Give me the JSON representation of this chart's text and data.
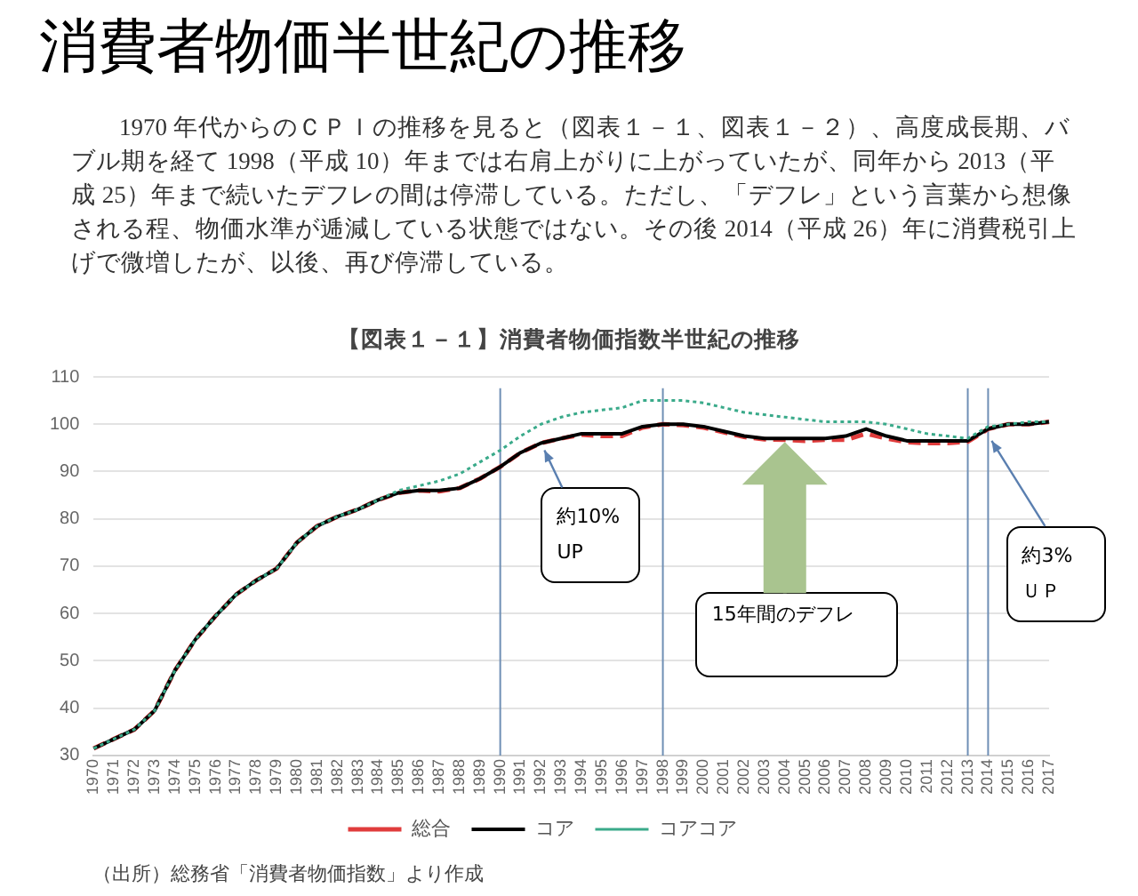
{
  "chart_data": {
    "type": "line",
    "title": "消費者物価半世紀の推移",
    "subtitle": "【図表１－１】消費者物価指数半世紀の推移",
    "categories": [
      "1970",
      "1971",
      "1972",
      "1973",
      "1974",
      "1975",
      "1976",
      "1977",
      "1978",
      "1979",
      "1980",
      "1981",
      "1982",
      "1983",
      "1984",
      "1985",
      "1986",
      "1987",
      "1988",
      "1989",
      "1990",
      "1991",
      "1992",
      "1993",
      "1994",
      "1995",
      "1996",
      "1997",
      "1998",
      "1999",
      "2000",
      "2001",
      "2002",
      "2003",
      "2004",
      "2005",
      "2006",
      "2007",
      "2008",
      "2009",
      "2010",
      "2011",
      "2012",
      "2013",
      "2014",
      "2015",
      "2016",
      "2017"
    ],
    "series": [
      {
        "name": "総合",
        "color": "#e03c3c",
        "line_style": "dashed",
        "values": [
          31.5,
          33.5,
          35.5,
          39.5,
          48,
          54.5,
          59.5,
          64,
          67,
          69.5,
          75,
          78.5,
          80.5,
          82,
          84,
          85.5,
          86,
          85.8,
          86.5,
          88.5,
          91,
          94,
          96,
          97,
          97.8,
          97.5,
          97.5,
          99.3,
          100,
          99.8,
          99.3,
          98.3,
          97.3,
          96.8,
          96.7,
          96.5,
          96.7,
          96.7,
          98,
          97,
          96.2,
          96,
          96,
          96.3,
          99,
          100,
          100,
          100.5
        ]
      },
      {
        "name": "コア",
        "color": "#000000",
        "line_style": "solid",
        "values": [
          31.5,
          33.5,
          35.5,
          39.5,
          48,
          54.5,
          59.5,
          64,
          67,
          69.5,
          75,
          78.5,
          80.5,
          82,
          84,
          85.5,
          86,
          86,
          86.5,
          88.5,
          91,
          94,
          96,
          97,
          98,
          98,
          98,
          99.5,
          100,
          100,
          99.5,
          98.5,
          97.5,
          97,
          97,
          97,
          97,
          97.5,
          99,
          97.5,
          96.5,
          96.5,
          96.5,
          96.5,
          99,
          100,
          100,
          100.5
        ]
      },
      {
        "name": "コアコア",
        "color": "#3aaa8a",
        "line_style": "dotted",
        "values": [
          31.5,
          33.5,
          35.5,
          39.5,
          48,
          54.5,
          59.5,
          64,
          67,
          69.5,
          75,
          78.5,
          80.5,
          82,
          84,
          86,
          87,
          88,
          89.5,
          92,
          94.5,
          97.5,
          100,
          101.5,
          102.5,
          103,
          103.5,
          105,
          105,
          105,
          104.5,
          103.5,
          102.5,
          102,
          101.5,
          101,
          100.5,
          100.5,
          100.5,
          100,
          99,
          98,
          97.5,
          97,
          99.5,
          100,
          100.5,
          100.5
        ]
      }
    ],
    "ylim": [
      30,
      110
    ],
    "yticks": [
      30,
      40,
      50,
      60,
      70,
      80,
      90,
      100,
      110
    ],
    "grid": "y",
    "legend": "bottom",
    "marker": "none",
    "ref_lines": [
      {
        "axis": "x",
        "value": "1990",
        "color": "#6f8fb5"
      },
      {
        "axis": "x",
        "value": "1998",
        "color": "#6f8fb5"
      },
      {
        "axis": "x",
        "value": "2013",
        "color": "#6f8fb5"
      },
      {
        "axis": "x",
        "value": "2014",
        "color": "#6f8fb5"
      }
    ],
    "annotations": [
      "1970 年代からのＣＰＩの推移を見ると（図表１－１、図表１－２）、高度成長期、バブル期を経て 1998（平成 10）年までは右肩上がりに上がっていたが、同年から 2013（平成 25）年まで続いたデフレの間は停滞している。ただし、「デフレ」という言葉から想像される程、物価水準が逓減している状態ではない。その後 2014（平成 26）年に消費税引上げで微増したが、以後、再び停滞している。",
      {
        "text": "約10%\nUP",
        "x": "1992",
        "y": 96
      },
      {
        "text": "15年間のデフレ",
        "x": "2004",
        "y": 97
      },
      {
        "text": "約3%\nＵＰ",
        "x": "2014",
        "y": 98
      },
      "（出所）総務省「消費者物価指数」より作成"
    ]
  }
}
